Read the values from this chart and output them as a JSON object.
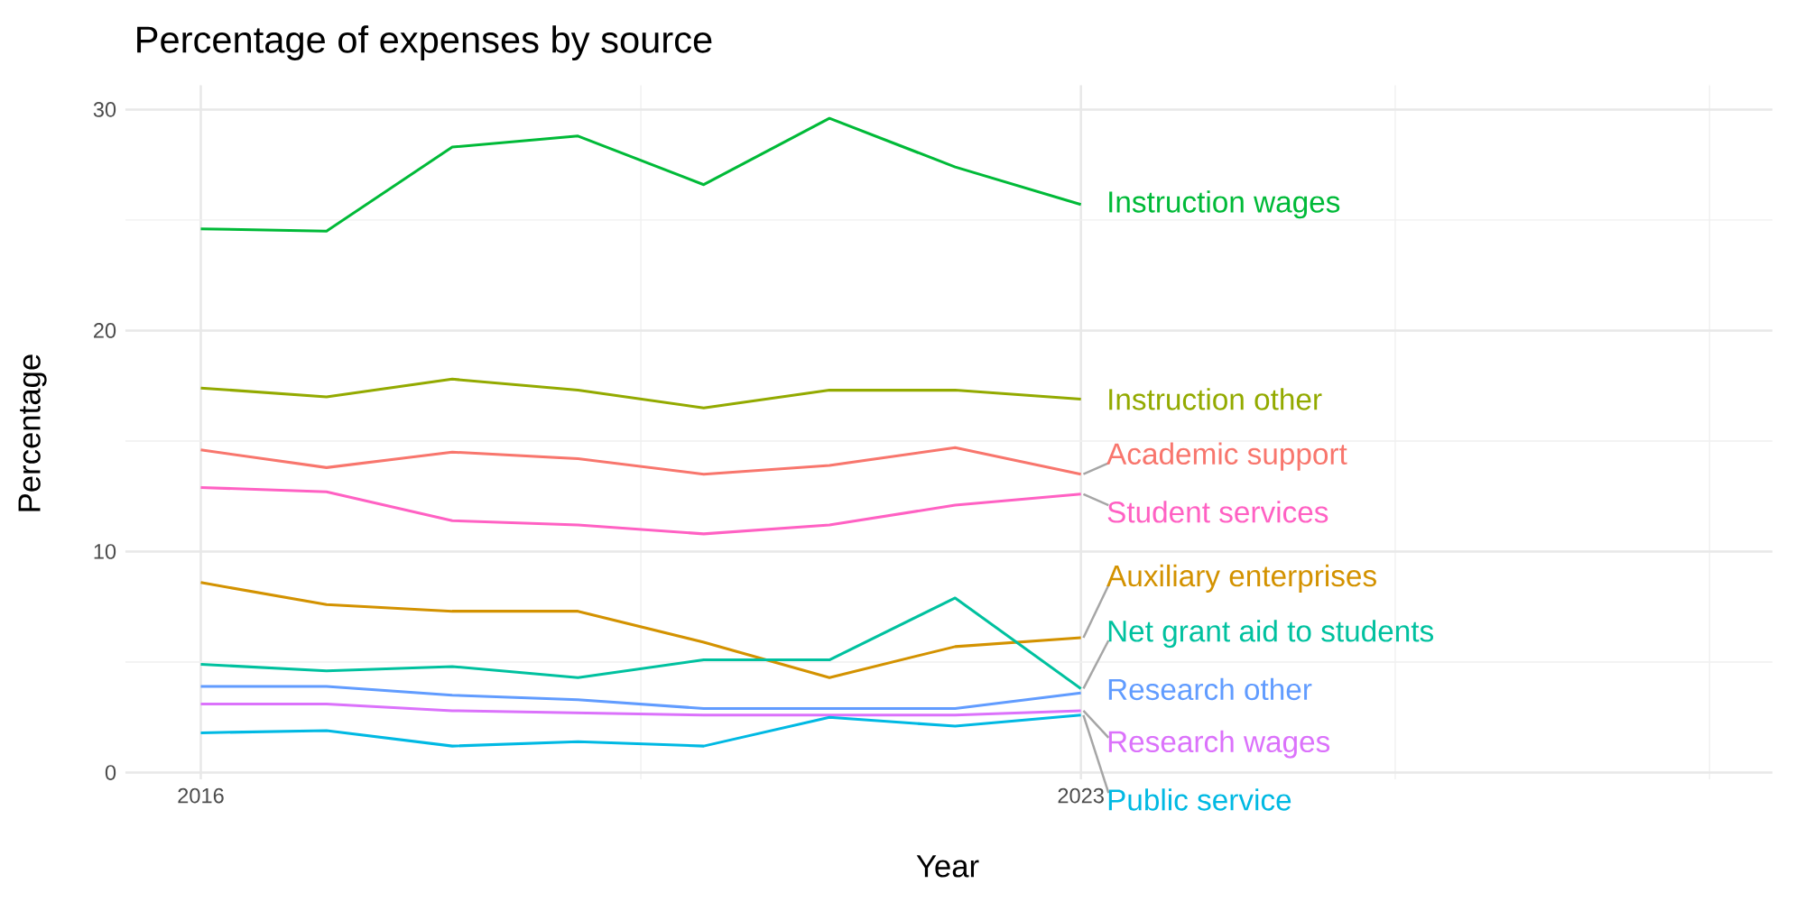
{
  "chart_data": {
    "type": "line",
    "title": "Percentage of expenses by source",
    "xlabel": "Year",
    "ylabel": "Percentage",
    "x": [
      2016,
      2017,
      2018,
      2019,
      2020,
      2021,
      2022,
      2023
    ],
    "xlim": [
      2015.4,
      2028.5
    ],
    "xticks": [
      2016,
      2023,
      {
        "value": 2019.5,
        "label": null
      },
      {
        "value": 2025.5,
        "label": null
      },
      {
        "value": 2028,
        "label": null
      }
    ],
    "ylim": [
      -0.3,
      31.1
    ],
    "yticks": [
      0,
      10,
      20,
      30,
      {
        "value": 5,
        "label": null
      },
      {
        "value": 15,
        "label": null
      },
      {
        "value": 25,
        "label": null
      }
    ],
    "grid": true,
    "legend": false,
    "series": [
      {
        "name": "Instruction wages",
        "color": "#00ba38",
        "values": [
          24.6,
          24.5,
          28.3,
          28.8,
          26.6,
          29.6,
          27.4,
          25.7
        ]
      },
      {
        "name": "Instruction other",
        "color": "#93aa00",
        "values": [
          17.4,
          17.0,
          17.8,
          17.3,
          16.5,
          17.3,
          17.3,
          16.9
        ]
      },
      {
        "name": "Academic support",
        "color": "#f8766d",
        "values": [
          14.6,
          13.8,
          14.5,
          14.2,
          13.5,
          13.9,
          14.7,
          13.5
        ]
      },
      {
        "name": "Student services",
        "color": "#ff61c3",
        "values": [
          12.9,
          12.7,
          11.4,
          11.2,
          10.8,
          11.2,
          12.1,
          12.6
        ]
      },
      {
        "name": "Auxiliary enterprises",
        "color": "#d39200",
        "values": [
          8.6,
          7.6,
          7.3,
          7.3,
          5.9,
          4.3,
          5.7,
          6.1
        ]
      },
      {
        "name": "Net grant aid to students",
        "color": "#00c19f",
        "values": [
          4.9,
          4.6,
          4.8,
          4.3,
          5.1,
          5.1,
          7.9,
          3.8
        ]
      },
      {
        "name": "Research other",
        "color": "#619cff",
        "values": [
          3.9,
          3.9,
          3.5,
          3.3,
          2.9,
          2.9,
          2.9,
          3.6
        ]
      },
      {
        "name": "Research wages",
        "color": "#db72fb",
        "values": [
          3.1,
          3.1,
          2.8,
          2.7,
          2.6,
          2.6,
          2.6,
          2.8
        ]
      },
      {
        "name": "Public service",
        "color": "#00b9e3",
        "values": [
          1.8,
          1.9,
          1.2,
          1.4,
          1.2,
          2.5,
          2.1,
          2.6
        ]
      }
    ]
  }
}
